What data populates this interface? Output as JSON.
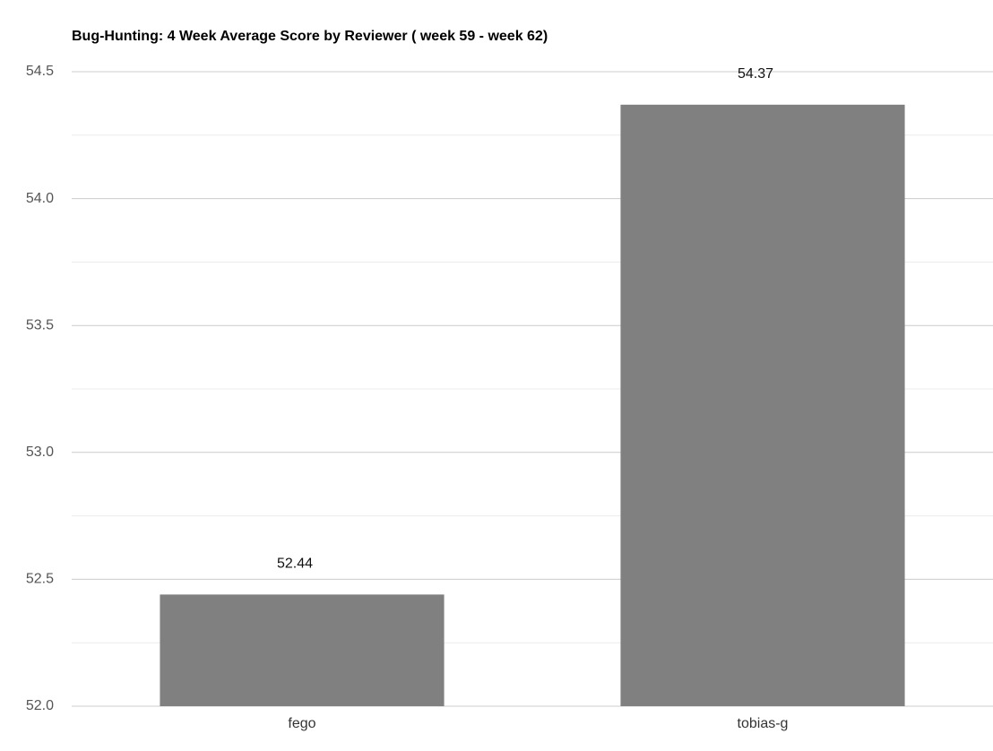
{
  "chart_data": {
    "type": "bar",
    "title": "Bug-Hunting: 4 Week Average Score by Reviewer ( week 59 - week 62)",
    "categories": [
      "fego",
      "tobias-g"
    ],
    "values": [
      52.44,
      54.37
    ],
    "color": "#808080",
    "ylim": [
      52,
      54.5
    ],
    "yticks": [
      {
        "value": 52,
        "label": "52.0"
      },
      52.5,
      {
        "value": 53,
        "label": "53.0"
      },
      53.5,
      {
        "value": 54,
        "label": "54.0"
      },
      54.5
    ],
    "minor_yticks": [
      52.25,
      52.75,
      53.25,
      53.75,
      54.25
    ],
    "grid": true
  }
}
